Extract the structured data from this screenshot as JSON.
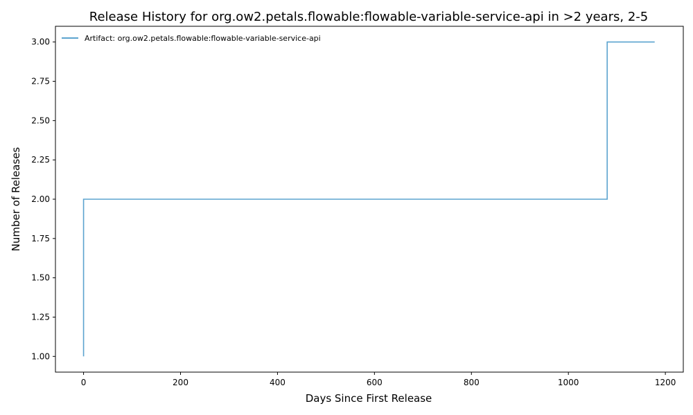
{
  "chart_data": {
    "type": "line",
    "drawstyle": "steps-post",
    "title": "Release History for org.ow2.petals.flowable:flowable-variable-service-api in >2 years, 2-5",
    "xlabel": "Days Since First Release",
    "ylabel": "Number of Releases",
    "xlim": [
      -58,
      1237
    ],
    "ylim": [
      0.9,
      3.1
    ],
    "x_ticks": [
      0,
      200,
      400,
      600,
      800,
      1000,
      1200
    ],
    "x_tick_labels": [
      "0",
      "200",
      "400",
      "600",
      "800",
      "1000",
      "1200"
    ],
    "y_ticks": [
      1.0,
      1.25,
      1.5,
      1.75,
      2.0,
      2.25,
      2.5,
      2.75,
      3.0
    ],
    "y_tick_labels": [
      "1.00",
      "1.25",
      "1.50",
      "1.75",
      "2.00",
      "2.25",
      "2.50",
      "2.75",
      "3.00"
    ],
    "grid": false,
    "legend_position": "top-left",
    "series": [
      {
        "name": "Artifact: org.ow2.petals.flowable:flowable-variable-service-api",
        "color": "#5ba3cf",
        "x": [
          0,
          0,
          1080,
          1178
        ],
        "y": [
          1,
          2,
          3,
          3
        ]
      }
    ]
  }
}
